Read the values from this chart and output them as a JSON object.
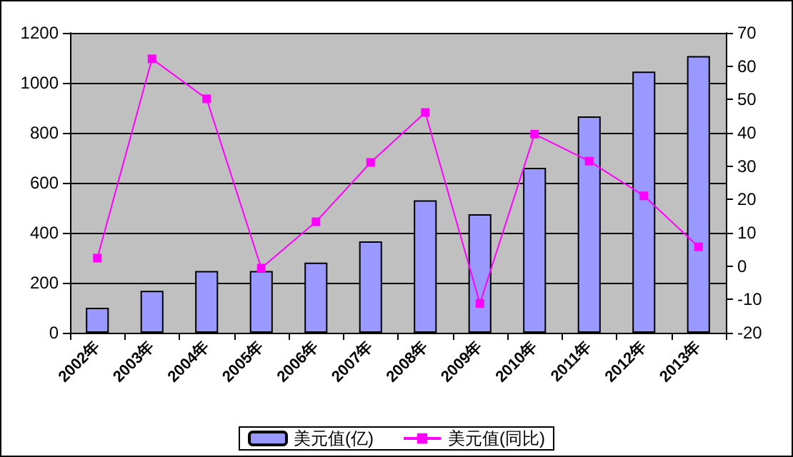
{
  "chart_data": {
    "type": "bar",
    "categories": [
      "2002年",
      "2003年",
      "2004年",
      "2005年",
      "2006年",
      "2007年",
      "2008年",
      "2009年",
      "2010年",
      "2011年",
      "2012年",
      "2013年"
    ],
    "series": [
      {
        "name": "美元值(亿)",
        "color": "#9999ff",
        "values": [
          100,
          168,
          247,
          247,
          281,
          366,
          530,
          474,
          660,
          866,
          1045,
          1107
        ]
      },
      {
        "name": "美元值(同比)",
        "type": "line",
        "axis": "y2",
        "color": "#ff00ff",
        "marker": "square",
        "values": [
          2.4,
          62.2,
          50.2,
          -0.6,
          13.3,
          31.1,
          46.1,
          -11.2,
          39.6,
          31.5,
          21.1,
          5.8
        ]
      }
    ],
    "ylim": [
      0,
      1200
    ],
    "yticks": [
      0,
      200,
      400,
      600,
      800,
      1000,
      1200
    ],
    "y2lim": [
      -20,
      70
    ],
    "y2ticks": [
      -20,
      -10,
      0,
      10,
      20,
      30,
      40,
      50,
      60,
      70
    ],
    "grid": "y",
    "legend": "bottom"
  }
}
